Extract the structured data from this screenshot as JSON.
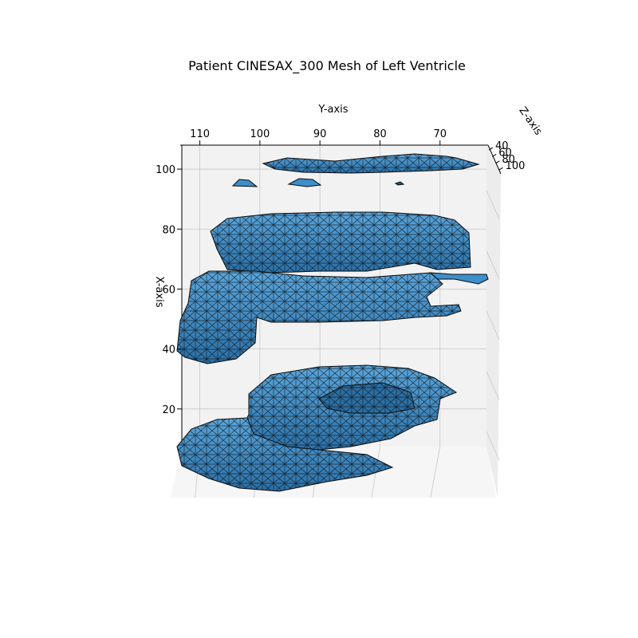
{
  "chart_data": {
    "type": "surface3d",
    "title": "Patient CINESAX_300 Mesh of Left Ventricle",
    "xlabel": "Y-axis",
    "ylabel": "X-axis",
    "zlabel": "Z-axis",
    "x_ticks": [
      110,
      100,
      90,
      80,
      70
    ],
    "y_ticks": [
      100,
      80,
      60,
      40,
      20
    ],
    "z_ticks": [
      40,
      60,
      80,
      100
    ],
    "x_range": [
      113,
      62
    ],
    "y_range": [
      0,
      108
    ],
    "z_range": [
      35,
      102
    ],
    "colors": {
      "face": "#3d8fcc",
      "face_dark": "#1d5a8a",
      "edge": "#0a0a0a",
      "pane": "#f2f2f2",
      "grid": "#c8c8c8"
    }
  }
}
